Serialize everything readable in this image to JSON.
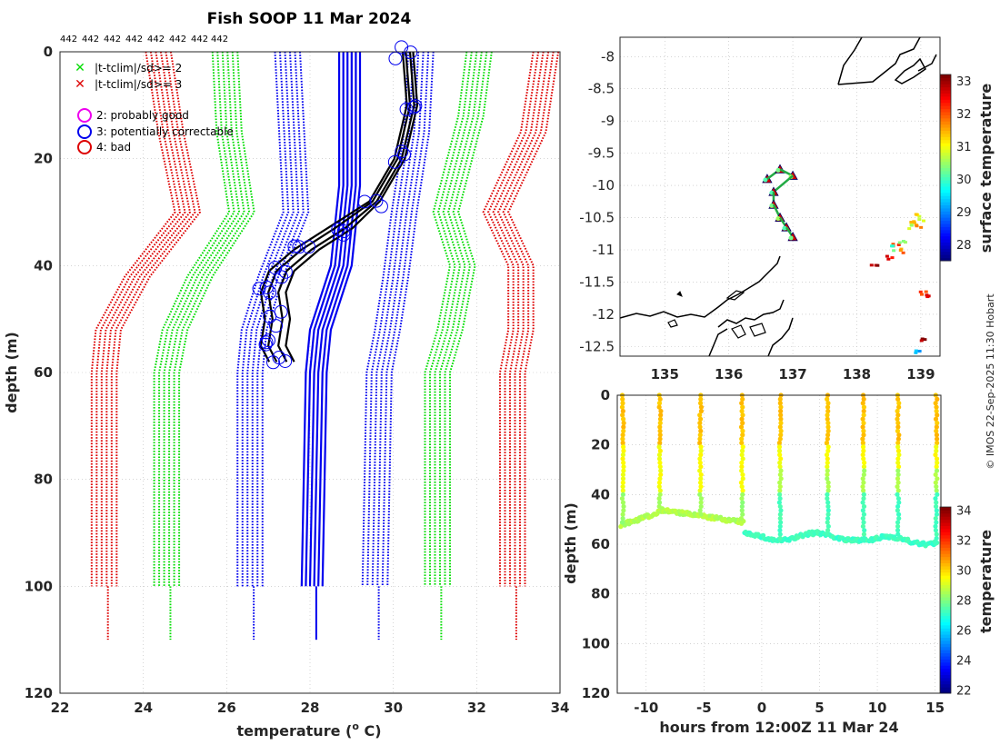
{
  "title": "Fish SOOP 11 Mar 2024",
  "sample_counts": [
    "442",
    "442",
    "442",
    "442",
    "442",
    "442",
    "442",
    "442"
  ],
  "credit": "© IMOS 22-Sep-2025 11:30 Hobart",
  "legend": {
    "crit2": "|t-tclim|/sd>= 2",
    "crit3": "|t-tclim|/sd>= 3",
    "flag2": "2: probably good",
    "flag3": "3: potentially correctable",
    "flag4": "4: bad"
  },
  "colors": {
    "green": "#00dd00",
    "red": "#dd0000",
    "blue": "#0000ee",
    "black": "#000000",
    "magenta": "#ee00ee",
    "grid": "#bbbbbb"
  },
  "chart_data": [
    {
      "type": "line",
      "id": "profile",
      "title": "Fish SOOP 11 Mar 2024",
      "xlabel": "temperature (o C)",
      "xlabel_main": "temperature (",
      "xlabel_sup": "o",
      "xlabel_end": " C)",
      "ylabel": "depth (m)",
      "xlim": [
        22,
        34
      ],
      "ylim": [
        0,
        120
      ],
      "xticks": [
        "22",
        "24",
        "26",
        "28",
        "30",
        "32",
        "34"
      ],
      "yticks": [
        "0",
        "20",
        "40",
        "60",
        "80",
        "100",
        "120"
      ],
      "series": [
        {
          "name": "clim -3sd",
          "color": "red",
          "style": "dotted",
          "points": [
            [
              24.3,
              0
            ],
            [
              24.6,
              15
            ],
            [
              25.0,
              30
            ],
            [
              23.8,
              42
            ],
            [
              23.1,
              52
            ],
            [
              23.0,
              60
            ],
            [
              23.0,
              100
            ]
          ]
        },
        {
          "name": "clim -2sd",
          "color": "green",
          "style": "dotted",
          "points": [
            [
              25.9,
              0
            ],
            [
              26.0,
              15
            ],
            [
              26.3,
              30
            ],
            [
              25.3,
              42
            ],
            [
              24.7,
              52
            ],
            [
              24.5,
              60
            ],
            [
              24.5,
              100
            ]
          ]
        },
        {
          "name": "clim -1sd",
          "color": "blue",
          "style": "dotted",
          "points": [
            [
              27.4,
              0
            ],
            [
              27.5,
              15
            ],
            [
              27.6,
              30
            ],
            [
              27.0,
              42
            ],
            [
              26.6,
              52
            ],
            [
              26.5,
              60
            ],
            [
              26.5,
              100
            ]
          ]
        },
        {
          "name": "clim +1sd",
          "color": "blue",
          "style": "dotted",
          "points": [
            [
              30.6,
              0
            ],
            [
              30.5,
              15
            ],
            [
              30.2,
              30
            ],
            [
              30.0,
              42
            ],
            [
              29.8,
              52
            ],
            [
              29.6,
              60
            ],
            [
              29.5,
              100
            ]
          ]
        },
        {
          "name": "clim +2sd",
          "color": "green",
          "style": "dotted",
          "points": [
            [
              32.0,
              0
            ],
            [
              31.8,
              12
            ],
            [
              31.2,
              30
            ],
            [
              31.6,
              40
            ],
            [
              31.3,
              52
            ],
            [
              31.0,
              60
            ],
            [
              31.0,
              100
            ]
          ]
        },
        {
          "name": "clim +3sd",
          "color": "red",
          "style": "dotted",
          "points": [
            [
              33.6,
              0
            ],
            [
              33.3,
              15
            ],
            [
              32.4,
              30
            ],
            [
              33.0,
              40
            ],
            [
              33.0,
              52
            ],
            [
              32.8,
              60
            ],
            [
              32.8,
              100
            ]
          ]
        },
        {
          "name": "clim mean",
          "color": "blue",
          "style": "solid",
          "points": [
            [
              29.0,
              0
            ],
            [
              29.0,
              25
            ],
            [
              28.8,
              40
            ],
            [
              28.3,
              52
            ],
            [
              28.2,
              60
            ],
            [
              28.1,
              100
            ]
          ]
        },
        {
          "name": "XBT profile",
          "color": "black",
          "style": "solid",
          "points": [
            [
              30.3,
              0
            ],
            [
              30.4,
              10
            ],
            [
              30.1,
              20
            ],
            [
              29.5,
              28
            ],
            [
              28.6,
              33
            ],
            [
              27.8,
              37
            ],
            [
              27.2,
              41
            ],
            [
              27.0,
              45
            ],
            [
              27.1,
              50
            ],
            [
              27.0,
              55
            ],
            [
              27.2,
              58
            ]
          ]
        }
      ]
    },
    {
      "type": "scatter",
      "id": "map",
      "ylabel": "",
      "xlim": [
        134.3,
        139.3
      ],
      "ylim": [
        -12.65,
        -7.7
      ],
      "xticks": [
        "135",
        "136",
        "137",
        "138",
        "139"
      ],
      "yticks": [
        "-8",
        "-8.5",
        "-9",
        "-9.5",
        "-10",
        "-10.5",
        "-11",
        "-11.5",
        "-12",
        "-12.5"
      ],
      "track": [
        [
          136.6,
          -9.9
        ],
        [
          136.8,
          -9.75
        ],
        [
          137.0,
          -9.85
        ],
        [
          136.7,
          -10.1
        ],
        [
          136.7,
          -10.3
        ],
        [
          136.8,
          -10.5
        ],
        [
          136.9,
          -10.65
        ],
        [
          137.0,
          -10.8
        ]
      ],
      "colorbar": {
        "label": "surface temperature",
        "range": [
          27.5,
          33.2
        ],
        "ticks": [
          "28",
          "29",
          "30",
          "31",
          "32",
          "33"
        ]
      }
    },
    {
      "type": "scatter",
      "id": "section",
      "xlabel": "hours from 12:00Z 11 Mar 24",
      "ylabel": "depth (m)",
      "xlim": [
        -12.5,
        15.5
      ],
      "ylim": [
        0,
        120
      ],
      "xticks": [
        "-10",
        "-5",
        "0",
        "5",
        "10",
        "15"
      ],
      "yticks": [
        "0",
        "20",
        "40",
        "60",
        "80",
        "100",
        "120"
      ],
      "cast_hours": [
        -12.0,
        -8.8,
        -5.3,
        -1.7,
        1.6,
        5.7,
        8.8,
        11.8,
        15.1
      ],
      "colorbar": {
        "label": "temperature",
        "range": [
          21.8,
          34.2
        ],
        "ticks": [
          "22",
          "24",
          "26",
          "28",
          "30",
          "32",
          "34"
        ]
      }
    }
  ]
}
